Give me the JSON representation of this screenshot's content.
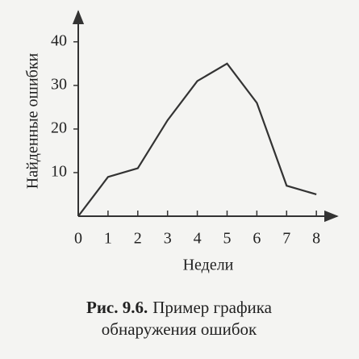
{
  "chart_data": {
    "type": "line",
    "y_label": "Найденные ошибки",
    "x_label": "Недели",
    "caption_label": "Рис. 9.6.",
    "caption_lines": [
      "Пример графика",
      "обнаружения ошибок"
    ],
    "x": [
      0,
      1,
      2,
      3,
      4,
      5,
      6,
      7,
      8
    ],
    "values": [
      0,
      9,
      11,
      22,
      31,
      35,
      26,
      7,
      5
    ],
    "color": "#333333",
    "xlim": [
      0,
      8.7
    ],
    "ylim": [
      0,
      47
    ],
    "xticks": [
      0,
      1,
      2,
      3,
      4,
      5,
      6,
      7,
      8
    ],
    "yticks": [
      10,
      20,
      30,
      40
    ]
  }
}
